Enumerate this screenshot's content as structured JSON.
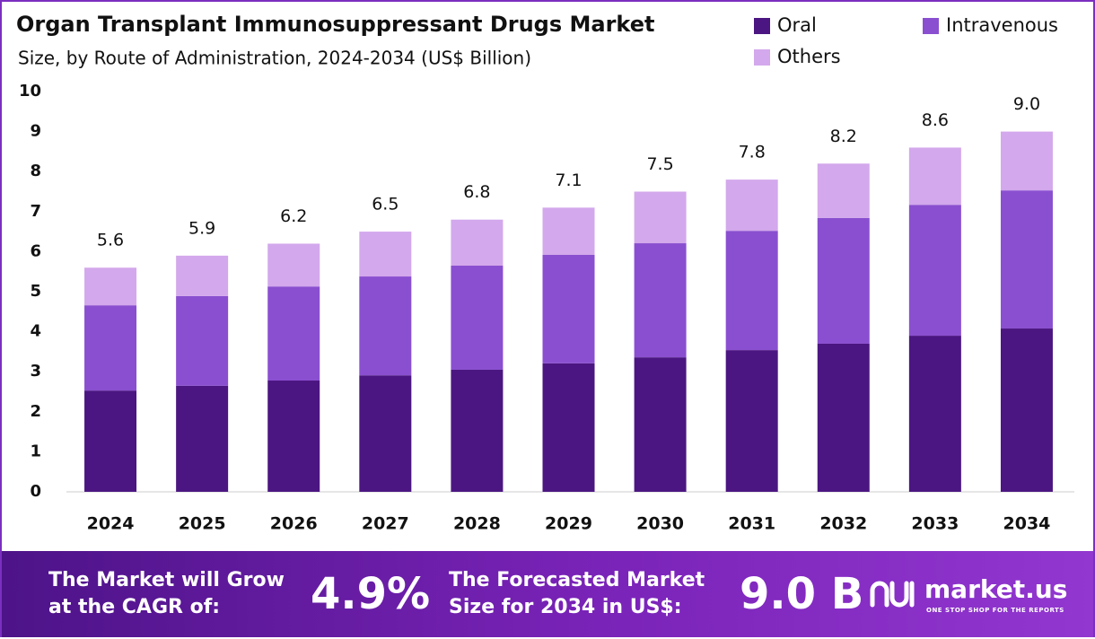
{
  "chart_data": {
    "type": "stacked_bar",
    "title": "Organ Transplant Immunosuppressant Drugs Market",
    "subtitle": "Size, by Route of Administration, 2024-2034 (US$ Billion)",
    "categories": [
      "2024",
      "2025",
      "2026",
      "2027",
      "2028",
      "2029",
      "2030",
      "2031",
      "2032",
      "2033",
      "2034"
    ],
    "series": [
      {
        "name": "Oral",
        "color": "#4b1681",
        "values": [
          2.53,
          2.65,
          2.78,
          2.91,
          3.05,
          3.21,
          3.36,
          3.54,
          3.7,
          3.9,
          4.08
        ]
      },
      {
        "name": "Intravenous",
        "color": "#8a4fd0",
        "values": [
          2.13,
          2.24,
          2.35,
          2.47,
          2.6,
          2.71,
          2.85,
          2.98,
          3.14,
          3.27,
          3.45
        ]
      },
      {
        "name": "Others",
        "color": "#d3a8ec",
        "values": [
          0.94,
          1.01,
          1.07,
          1.12,
          1.15,
          1.18,
          1.29,
          1.28,
          1.36,
          1.43,
          1.47
        ]
      }
    ],
    "totals": [
      5.6,
      5.9,
      6.2,
      6.5,
      6.8,
      7.1,
      7.5,
      7.8,
      8.2,
      8.6,
      9
    ],
    "total_labels": [
      "5.6",
      "5.9",
      "6.2",
      "6.5",
      "6.8",
      "7.1",
      "7.5",
      "7.8",
      "8.2",
      "8.6",
      "9.0"
    ],
    "ylim": [
      0,
      10
    ],
    "yticks": [
      0,
      1,
      2,
      3,
      4,
      5,
      6,
      7,
      8,
      9,
      10
    ],
    "grid": false,
    "legend": "top-right"
  },
  "footer": {
    "cagr_text": [
      "The Market will Grow",
      "at the CAGR of:"
    ],
    "cagr_value": "4.9%",
    "forecast_text": [
      "The Forecasted Market",
      "Size for 2034 in US$:"
    ],
    "forecast_value": "9.0 B",
    "brand": "market.us",
    "tagline": "ONE STOP SHOP FOR THE REPORTS"
  }
}
